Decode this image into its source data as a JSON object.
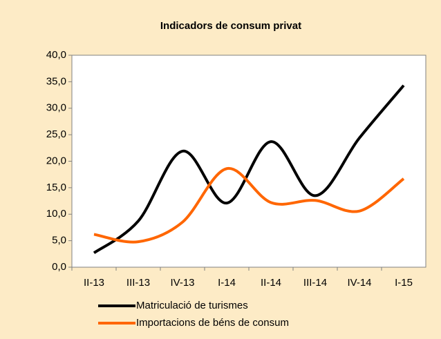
{
  "chart_data": {
    "type": "line",
    "title": "Indicadors de consum privat",
    "categories": [
      "II-13",
      "III-13",
      "IV-13",
      "I-14",
      "II-14",
      "III-14",
      "IV-14",
      "I-15"
    ],
    "series": [
      {
        "name": "Matriculació de turismes",
        "color": "#000000",
        "values": [
          2.7,
          8.7,
          21.9,
          12.1,
          23.7,
          13.5,
          24.4,
          34.3
        ]
      },
      {
        "name": "Importacions de béns de consum",
        "color": "#ff6600",
        "values": [
          6.2,
          4.8,
          8.5,
          18.6,
          12.2,
          12.6,
          10.6,
          16.7
        ]
      }
    ],
    "ylim": [
      0,
      40
    ],
    "yticks": [
      {
        "value": 0,
        "label": "0,0"
      },
      {
        "value": 5,
        "label": "5,0"
      },
      {
        "value": 10,
        "label": "10,0"
      },
      {
        "value": 15,
        "label": "15,0"
      },
      {
        "value": 20,
        "label": "20,0"
      },
      {
        "value": 25,
        "label": "25,0"
      },
      {
        "value": 30,
        "label": "30,0"
      },
      {
        "value": 35,
        "label": "35,0"
      },
      {
        "value": 40,
        "label": "40,0"
      }
    ],
    "smooth": true,
    "legend": "bottom"
  }
}
